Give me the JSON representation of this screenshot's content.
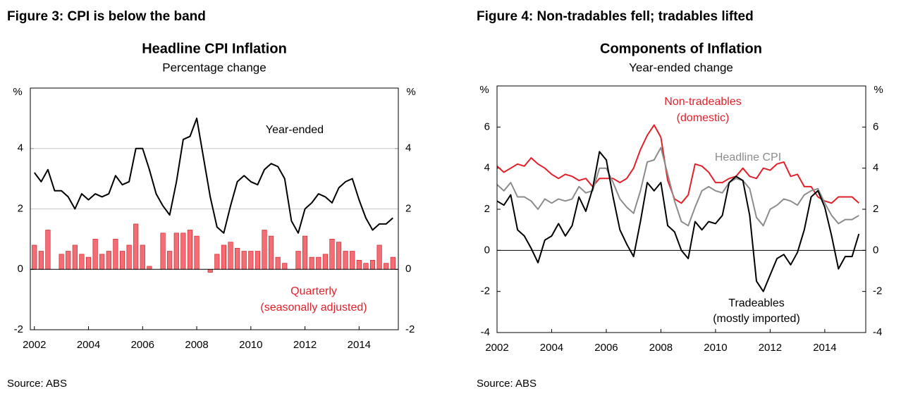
{
  "chart_data": [
    {
      "type": "bar-line",
      "figure_title": "Figure 3: CPI is below the band",
      "title": "Headline CPI Inflation",
      "subtitle": "Percentage change",
      "y_unit": "%",
      "source": "Source: ABS",
      "x": [
        2002,
        2002.25,
        2002.5,
        2002.75,
        2003,
        2003.25,
        2003.5,
        2003.75,
        2004,
        2004.25,
        2004.5,
        2004.75,
        2005,
        2005.25,
        2005.5,
        2005.75,
        2006,
        2006.25,
        2006.5,
        2006.75,
        2007,
        2007.25,
        2007.5,
        2007.75,
        2008,
        2008.25,
        2008.5,
        2008.75,
        2009,
        2009.25,
        2009.5,
        2009.75,
        2010,
        2010.25,
        2010.5,
        2010.75,
        2011,
        2011.25,
        2011.5,
        2011.75,
        2012,
        2012.25,
        2012.5,
        2012.75,
        2013,
        2013.25,
        2013.5,
        2013.75,
        2014,
        2014.25,
        2014.5,
        2014.75,
        2015,
        2015.25
      ],
      "xlim": [
        2001.85,
        2015.45
      ],
      "xticks": [
        2002,
        2004,
        2006,
        2008,
        2010,
        2012,
        2014
      ],
      "ylim": [
        -2,
        6
      ],
      "yticks": [
        -2,
        0,
        2,
        4
      ],
      "grid": true,
      "series": [
        {
          "label": [
            "Year-ended"
          ],
          "kind": "line",
          "color": "#000000",
          "values": [
            3.2,
            2.9,
            3.3,
            2.6,
            2.6,
            2.4,
            2.0,
            2.5,
            2.3,
            2.5,
            2.4,
            2.5,
            3.1,
            2.8,
            2.9,
            4.0,
            4.0,
            3.3,
            2.5,
            2.1,
            1.8,
            2.9,
            4.3,
            4.4,
            5.0,
            3.7,
            2.4,
            1.4,
            1.2,
            2.1,
            2.9,
            3.1,
            2.9,
            2.8,
            3.3,
            3.5,
            3.4,
            3.0,
            1.6,
            1.2,
            2.0,
            2.2,
            2.5,
            2.4,
            2.2,
            2.7,
            2.9,
            3.0,
            2.3,
            1.7,
            1.3,
            1.5,
            1.5,
            1.7
          ]
        },
        {
          "label": [
            "Quarterly",
            "(seasonally adjusted)"
          ],
          "kind": "bar",
          "color": "#f26d74",
          "values": [
            0.8,
            0.6,
            1.3,
            0,
            0.5,
            0.6,
            0.8,
            0.5,
            0.4,
            1.0,
            0.5,
            0.6,
            1.0,
            0.6,
            0.8,
            1.5,
            0.8,
            0.1,
            0,
            1.2,
            0.6,
            1.2,
            1.2,
            1.3,
            1.1,
            0,
            -0.1,
            0.5,
            0.8,
            0.9,
            0.7,
            0.6,
            0.6,
            0.6,
            1.3,
            1.1,
            0.4,
            0.2,
            0,
            0.6,
            1.1,
            0.4,
            0.4,
            0.5,
            1.0,
            0.9,
            0.6,
            0.6,
            0.3,
            0.2,
            0.3,
            0.8,
            0.2,
            0.4
          ]
        }
      ]
    },
    {
      "type": "line",
      "figure_title": "Figure 4: Non-tradables fell; tradables lifted",
      "title": "Components of Inflation",
      "subtitle": "Year-ended change",
      "y_unit": "%",
      "source": "Source: ABS",
      "x": [
        2002,
        2002.25,
        2002.5,
        2002.75,
        2003,
        2003.25,
        2003.5,
        2003.75,
        2004,
        2004.25,
        2004.5,
        2004.75,
        2005,
        2005.25,
        2005.5,
        2005.75,
        2006,
        2006.25,
        2006.5,
        2006.75,
        2007,
        2007.25,
        2007.5,
        2007.75,
        2008,
        2008.25,
        2008.5,
        2008.75,
        2009,
        2009.25,
        2009.5,
        2009.75,
        2010,
        2010.25,
        2010.5,
        2010.75,
        2011,
        2011.25,
        2011.5,
        2011.75,
        2012,
        2012.25,
        2012.5,
        2012.75,
        2013,
        2013.25,
        2013.5,
        2013.75,
        2014,
        2014.25,
        2014.5,
        2014.75,
        2015,
        2015.25
      ],
      "xlim": [
        2002,
        2015.5
      ],
      "xticks": [
        2002,
        2004,
        2006,
        2008,
        2010,
        2012,
        2014
      ],
      "ylim": [
        -4,
        8
      ],
      "yticks": [
        -4,
        -2,
        0,
        2,
        4,
        6
      ],
      "grid": false,
      "series": [
        {
          "label": [
            "Non-tradeables",
            "(domestic)"
          ],
          "kind": "line",
          "color": "#e3202a",
          "values": [
            4.1,
            3.8,
            4.0,
            4.2,
            4.1,
            4.5,
            4.2,
            4.0,
            3.7,
            3.5,
            3.7,
            3.6,
            3.4,
            3.5,
            3.1,
            3.5,
            3.5,
            3.5,
            3.3,
            3.5,
            4.0,
            4.9,
            5.6,
            6.1,
            5.5,
            3.4,
            2.5,
            2.3,
            2.7,
            4.2,
            4.1,
            3.8,
            3.3,
            3.3,
            3.5,
            3.6,
            4.0,
            3.6,
            3.5,
            4.0,
            3.9,
            4.2,
            4.3,
            3.6,
            3.7,
            3.1,
            3.1,
            2.6,
            2.4,
            2.3,
            2.6,
            2.6,
            2.6,
            2.3
          ]
        },
        {
          "label": [
            "Headline CPI"
          ],
          "kind": "line",
          "color": "#8c8c8c",
          "values": [
            3.2,
            2.9,
            3.3,
            2.6,
            2.6,
            2.4,
            2.0,
            2.5,
            2.3,
            2.5,
            2.4,
            2.5,
            3.1,
            2.8,
            2.9,
            4.0,
            4.0,
            3.3,
            2.5,
            2.1,
            1.8,
            2.9,
            4.3,
            4.4,
            5.0,
            3.7,
            2.4,
            1.4,
            1.2,
            2.1,
            2.9,
            3.1,
            2.9,
            2.8,
            3.3,
            3.5,
            3.4,
            3.0,
            1.6,
            1.2,
            2.0,
            2.2,
            2.5,
            2.4,
            2.2,
            2.7,
            2.9,
            3.0,
            2.3,
            1.7,
            1.3,
            1.5,
            1.5,
            1.7
          ]
        },
        {
          "label": [
            "Tradeables",
            "(mostly imported)"
          ],
          "kind": "line",
          "color": "#000000",
          "values": [
            2.4,
            2.2,
            2.7,
            1.0,
            0.7,
            0.1,
            -0.6,
            0.5,
            0.7,
            1.3,
            0.7,
            1.2,
            2.6,
            1.9,
            3.0,
            4.8,
            4.4,
            2.6,
            1.0,
            0.3,
            -0.3,
            1.4,
            3.3,
            2.9,
            3.3,
            1.2,
            0.9,
            0.0,
            -0.4,
            1.4,
            1.0,
            1.4,
            1.3,
            1.7,
            3.3,
            3.6,
            3.4,
            1.7,
            -1.5,
            -2.0,
            -1.2,
            -0.4,
            -0.2,
            -0.7,
            -0.1,
            1.0,
            2.6,
            2.9,
            2.1,
            0.7,
            -0.9,
            -0.3,
            -0.3,
            0.8
          ]
        }
      ]
    }
  ]
}
